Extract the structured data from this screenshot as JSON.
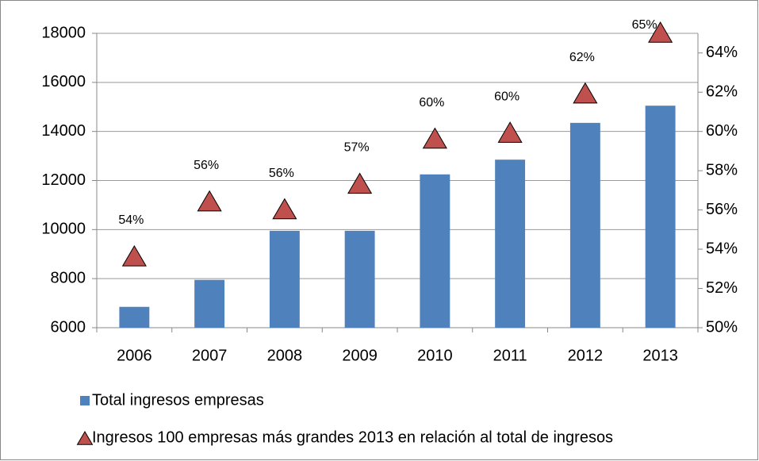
{
  "chart_data": {
    "type": "combo",
    "categories": [
      "2006",
      "2007",
      "2008",
      "2009",
      "2010",
      "2011",
      "2012",
      "2013"
    ],
    "series": [
      {
        "name": "Total ingresos empresas",
        "type": "bar",
        "color": "#4f81bd",
        "values": [
          6850,
          7950,
          9950,
          9950,
          12250,
          12850,
          14350,
          15050
        ]
      },
      {
        "name": "Ingresos 100 empresas más grandes 2013 en relación al total de ingresos",
        "type": "marker",
        "axis": "y2",
        "color": "#c0504d",
        "values": [
          53.6,
          56.4,
          56.0,
          57.3,
          59.6,
          59.9,
          61.9,
          65.0
        ],
        "value_labels": [
          "54%",
          "56%",
          "56%",
          "57%",
          "60%",
          "60%",
          "62%",
          "65%"
        ]
      }
    ],
    "ylim": [
      6000,
      18000
    ],
    "yticks": [
      6000,
      8000,
      10000,
      12000,
      14000,
      16000,
      18000
    ],
    "y2lim": [
      50,
      65
    ],
    "y2ticks": [
      {
        "value": 50,
        "label": "50%"
      },
      {
        "value": 52,
        "label": "52%"
      },
      {
        "value": 54,
        "label": "54%"
      },
      {
        "value": 56,
        "label": "56%"
      },
      {
        "value": 58,
        "label": "58%"
      },
      {
        "value": 60,
        "label": "60%"
      },
      {
        "value": 62,
        "label": "62%"
      },
      {
        "value": 64,
        "label": "64%"
      }
    ],
    "grid": true
  }
}
